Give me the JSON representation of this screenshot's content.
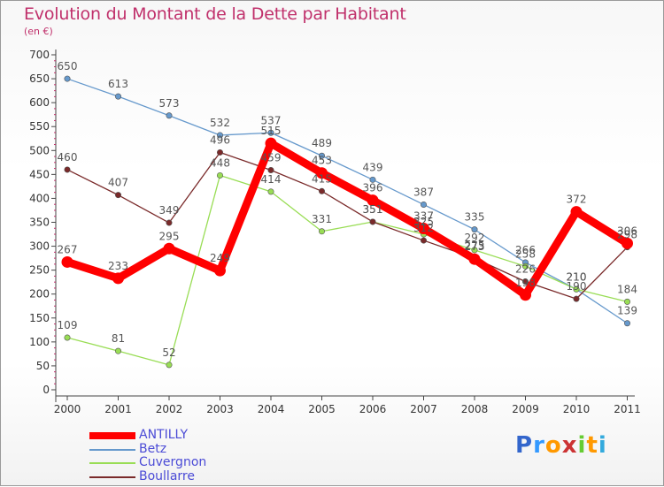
{
  "header": {
    "title": "Evolution du Montant de la Dette par Habitant",
    "subtitle": "(en €)"
  },
  "chart_data": {
    "type": "line",
    "title": "Evolution du Montant de la Dette par Habitant",
    "subtitle": "(en €)",
    "xlabel": "",
    "ylabel": "",
    "x": [
      "2000",
      "2001",
      "2002",
      "2003",
      "2004",
      "2005",
      "2006",
      "2007",
      "2008",
      "2009",
      "2010",
      "2011"
    ],
    "ylim": [
      0,
      700
    ],
    "yticks": [
      0,
      50,
      100,
      150,
      200,
      250,
      300,
      350,
      400,
      450,
      500,
      550,
      600,
      650,
      700
    ],
    "grid": false,
    "legend_position": "bottom-left",
    "series": [
      {
        "name": "ANTILLY",
        "color": "#ff0000",
        "values": [
          267,
          233,
          295,
          249,
          515,
          453,
          396,
          337,
          273,
          198,
          372,
          306
        ]
      },
      {
        "name": "Betz",
        "color": "#6699cc",
        "values": [
          650,
          613,
          573,
          532,
          537,
          489,
          439,
          387,
          335,
          266,
          210,
          139
        ]
      },
      {
        "name": "Cuvergnon",
        "color": "#99dd55",
        "values": [
          109,
          81,
          52,
          448,
          414,
          331,
          351,
          325,
          292,
          258,
          210,
          184
        ]
      },
      {
        "name": "Boullarre",
        "color": "#7a2a2a",
        "values": [
          460,
          407,
          349,
          496,
          459,
          415,
          351,
          312,
          275,
          226,
          190,
          298
        ]
      }
    ]
  },
  "logo": {
    "letters": [
      "P",
      "r",
      "o",
      "x",
      "i",
      "t",
      "i"
    ],
    "colors": [
      "#3366cc",
      "#3399ff",
      "#ff9900",
      "#cc3333",
      "#66cc33",
      "#ff9900",
      "#33aadd"
    ]
  }
}
